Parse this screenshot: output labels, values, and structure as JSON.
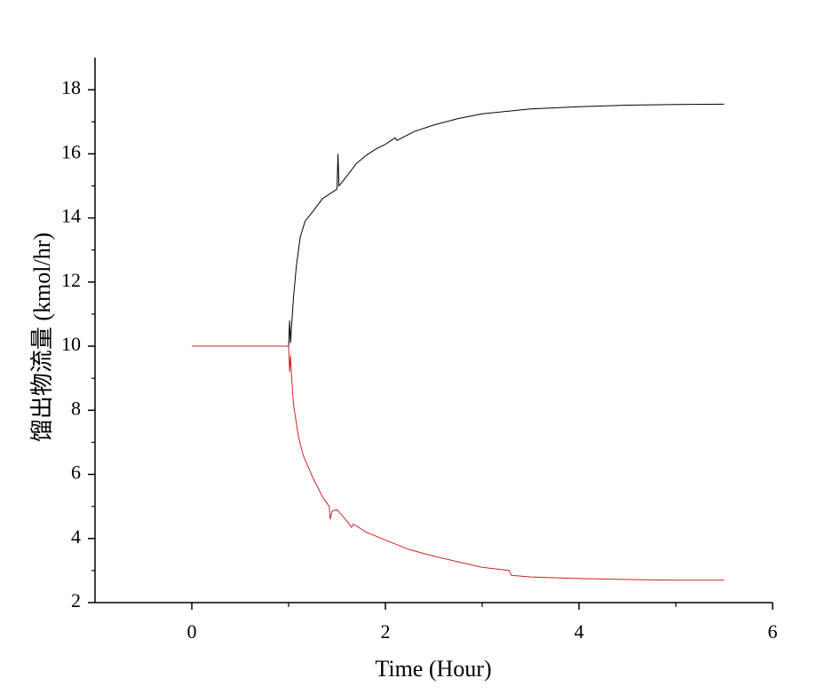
{
  "chart_data": {
    "type": "line",
    "x_label": "Time (Hour)",
    "y_label": "馏出物流量 (kmol/hr)",
    "xlim": [
      -1,
      6
    ],
    "xticks": [
      0,
      2,
      4,
      6
    ],
    "ylim": [
      2,
      19
    ],
    "yticks": [
      2,
      4,
      6,
      8,
      10,
      12,
      14,
      16,
      18
    ],
    "grid": false,
    "series": [
      {
        "color": "#000000",
        "x": [
          1.0,
          1.01,
          1.02,
          1.03,
          1.05,
          1.08,
          1.12,
          1.17,
          1.25,
          1.35,
          1.45,
          1.5,
          1.51,
          1.52,
          1.6,
          1.65,
          1.7,
          1.8,
          1.9,
          2.0,
          2.1,
          2.12,
          2.3,
          2.5,
          2.75,
          3.0,
          3.5,
          4.0,
          4.5,
          5.0,
          5.5
        ],
        "values": [
          10.0,
          10.8,
          10.1,
          10.6,
          11.5,
          12.5,
          13.4,
          13.9,
          14.2,
          14.6,
          14.8,
          14.9,
          16.0,
          15.0,
          15.3,
          15.5,
          15.7,
          15.95,
          16.15,
          16.3,
          16.5,
          16.42,
          16.7,
          16.9,
          17.1,
          17.25,
          17.4,
          17.47,
          17.52,
          17.54,
          17.55
        ]
      },
      {
        "color": "#cc2222",
        "x": [
          0,
          1.0,
          1.01,
          1.02,
          1.03,
          1.05,
          1.1,
          1.15,
          1.25,
          1.35,
          1.42,
          1.43,
          1.45,
          1.5,
          1.6,
          1.65,
          1.67,
          1.8,
          2.0,
          2.25,
          2.5,
          2.75,
          3.0,
          3.28,
          3.3,
          3.5,
          4.0,
          4.5,
          5.0,
          5.5
        ],
        "values": [
          10.0,
          10.0,
          9.2,
          9.7,
          9.1,
          8.2,
          7.2,
          6.6,
          5.9,
          5.3,
          5.0,
          4.6,
          4.85,
          4.9,
          4.55,
          4.35,
          4.45,
          4.2,
          3.95,
          3.65,
          3.45,
          3.27,
          3.1,
          3.0,
          2.85,
          2.8,
          2.75,
          2.72,
          2.7,
          2.7
        ]
      }
    ]
  }
}
